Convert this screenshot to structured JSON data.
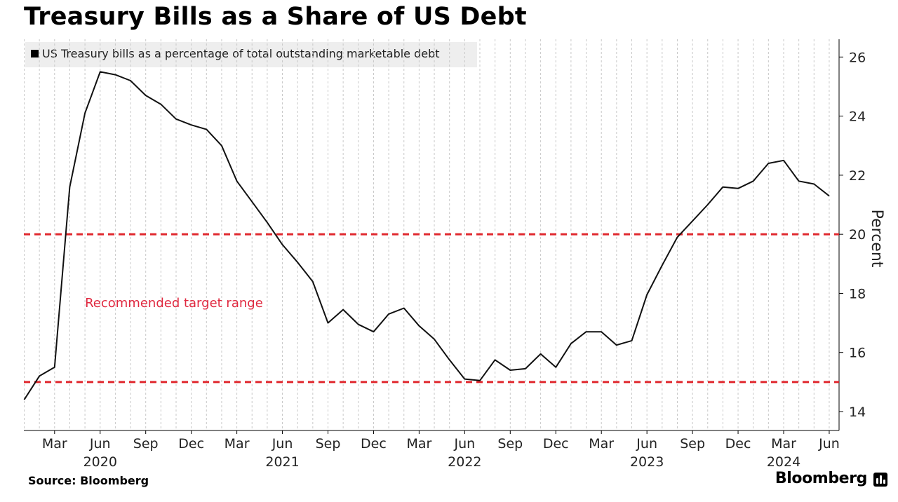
{
  "page": {
    "title": "Treasury Bills as a Share of US Debt",
    "source": "Source: Bloomberg",
    "brand": "Bloomberg"
  },
  "colors": {
    "line": "#111111",
    "target": "#e0282e",
    "annotation": "#e0283f",
    "grid": "#c8c8c8",
    "legend_bg": "#eeeeee"
  },
  "icons": [
    "bloomberg-logo-icon"
  ],
  "chart_data": {
    "type": "line",
    "title": "Treasury Bills as a Share of US Debt",
    "ylabel": "Percent",
    "ylim": [
      13.4,
      26.6
    ],
    "yticks": [
      14,
      16,
      18,
      20,
      22,
      24,
      26
    ],
    "y_axis_side": "right",
    "grid": "vertical dashed, monthly",
    "legend": {
      "position": "top-left",
      "entries": [
        "US Treasury bills as a percentage of total outstanding marketable debt"
      ]
    },
    "x_range": [
      "2020-01",
      "2024-06"
    ],
    "x_tick_labels": [
      {
        "month": "Mar",
        "year": "",
        "date": "2020-03"
      },
      {
        "month": "Jun",
        "year": "2020",
        "date": "2020-06"
      },
      {
        "month": "Sep",
        "year": "",
        "date": "2020-09"
      },
      {
        "month": "Dec",
        "year": "",
        "date": "2020-12"
      },
      {
        "month": "Mar",
        "year": "",
        "date": "2021-03"
      },
      {
        "month": "Jun",
        "year": "2021",
        "date": "2021-06"
      },
      {
        "month": "Sep",
        "year": "",
        "date": "2021-09"
      },
      {
        "month": "Dec",
        "year": "",
        "date": "2021-12"
      },
      {
        "month": "Mar",
        "year": "",
        "date": "2022-03"
      },
      {
        "month": "Jun",
        "year": "2022",
        "date": "2022-06"
      },
      {
        "month": "Sep",
        "year": "",
        "date": "2022-09"
      },
      {
        "month": "Dec",
        "year": "",
        "date": "2022-12"
      },
      {
        "month": "Mar",
        "year": "",
        "date": "2023-03"
      },
      {
        "month": "Jun",
        "year": "2023",
        "date": "2023-06"
      },
      {
        "month": "Sep",
        "year": "",
        "date": "2023-09"
      },
      {
        "month": "Dec",
        "year": "",
        "date": "2023-12"
      },
      {
        "month": "Mar",
        "year": "2024",
        "date": "2024-03"
      },
      {
        "month": "Jun",
        "year": "",
        "date": "2024-06"
      }
    ],
    "reference_lines": [
      {
        "name": "target-upper",
        "value": 20,
        "style": "dashed"
      },
      {
        "name": "target-lower",
        "value": 15,
        "style": "dashed"
      }
    ],
    "annotation": {
      "text": "Recommended target range",
      "anchor_date": "2020-05",
      "value": 17.7
    },
    "series": [
      {
        "name": "US Treasury bills as a percentage of total outstanding marketable debt",
        "x": [
          "2020-01",
          "2020-02",
          "2020-03",
          "2020-04",
          "2020-05",
          "2020-06",
          "2020-07",
          "2020-08",
          "2020-09",
          "2020-10",
          "2020-11",
          "2020-12",
          "2021-01",
          "2021-02",
          "2021-03",
          "2021-04",
          "2021-05",
          "2021-06",
          "2021-07",
          "2021-08",
          "2021-09",
          "2021-10",
          "2021-11",
          "2021-12",
          "2022-01",
          "2022-02",
          "2022-03",
          "2022-04",
          "2022-05",
          "2022-06",
          "2022-07",
          "2022-08",
          "2022-09",
          "2022-10",
          "2022-11",
          "2022-12",
          "2023-01",
          "2023-02",
          "2023-03",
          "2023-04",
          "2023-05",
          "2023-06",
          "2023-07",
          "2023-08",
          "2023-09",
          "2023-10",
          "2023-11",
          "2023-12",
          "2024-01",
          "2024-02",
          "2024-03",
          "2024-04",
          "2024-05",
          "2024-06"
        ],
        "values": [
          14.4,
          15.2,
          15.5,
          21.6,
          24.1,
          25.5,
          25.4,
          25.2,
          24.7,
          24.4,
          23.9,
          23.7,
          23.55,
          23.0,
          21.8,
          21.1,
          20.4,
          19.65,
          19.05,
          18.4,
          17.0,
          17.45,
          16.95,
          16.7,
          17.3,
          17.5,
          16.9,
          16.45,
          15.75,
          15.1,
          15.05,
          15.75,
          15.4,
          15.45,
          15.95,
          15.5,
          16.3,
          16.7,
          16.7,
          16.25,
          16.4,
          17.95,
          18.95,
          19.9,
          20.45,
          21.0,
          21.6,
          21.55,
          21.8,
          22.4,
          22.5,
          21.8,
          21.7,
          21.3
        ]
      }
    ]
  }
}
